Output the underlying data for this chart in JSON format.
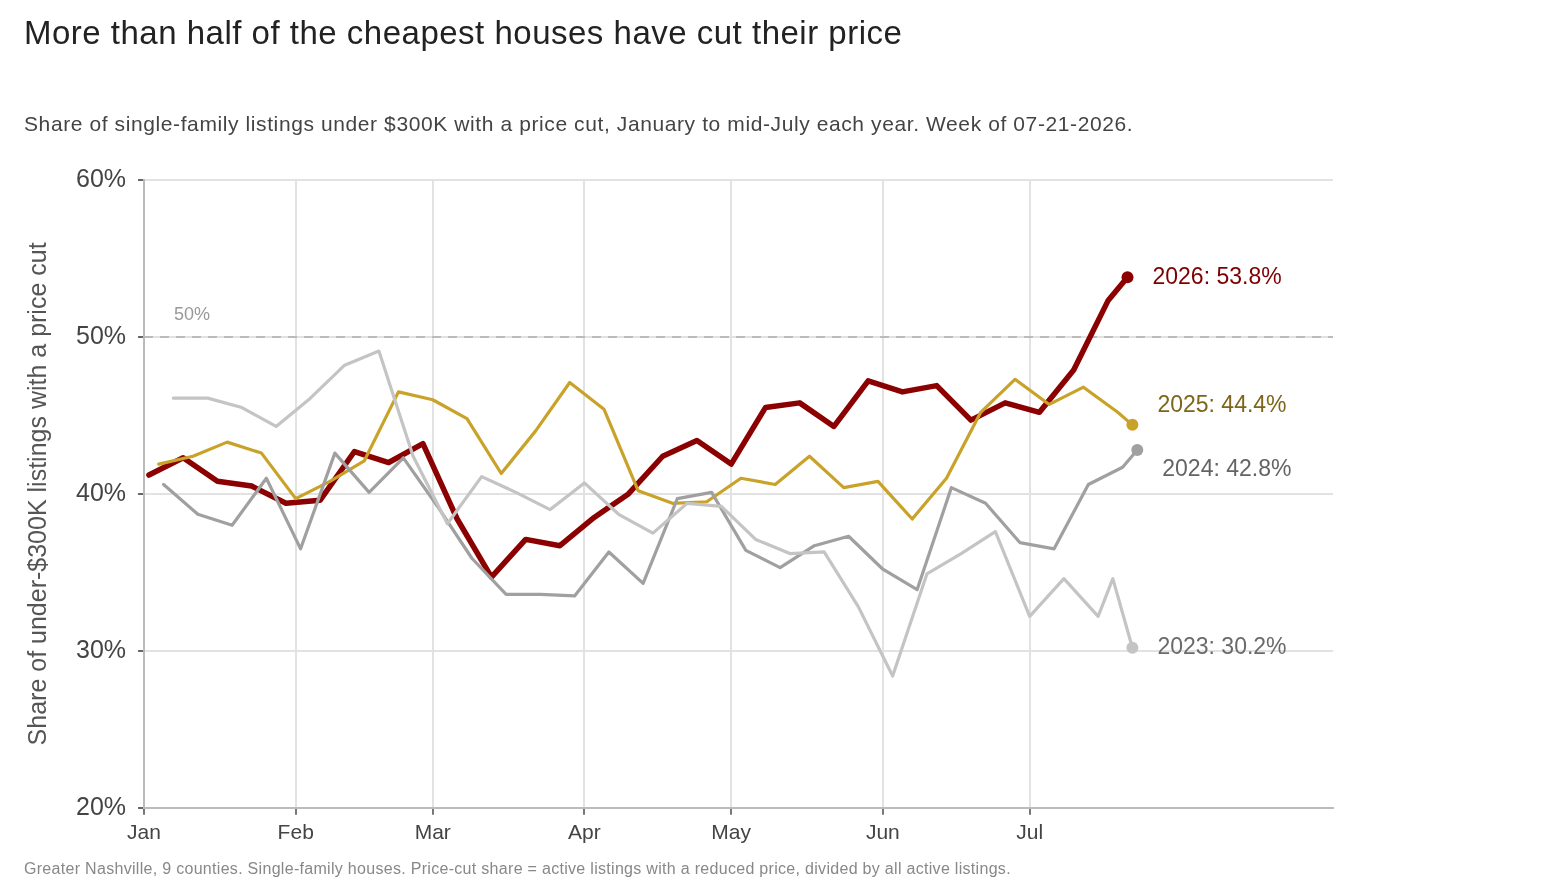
{
  "chart_data": {
    "type": "line",
    "title": "More than half of the cheapest houses have cut their price",
    "subtitle": "Share of single-family listings under $300K with a price cut, January to mid-July each year. Week of 07-21-2026.",
    "ylabel": "Share of under-$300K listings with a price cut",
    "annotations": [
      "Greater Nashville, 9 counties. Single-family houses. Price-cut share = active listings with a reduced price, divided by all active listings."
    ],
    "xlim": [
      "--01-01",
      "--09-01"
    ],
    "xticks": [
      {
        "value": "--01-01",
        "label": "Jan"
      },
      {
        "value": "--02-01",
        "label": "Feb"
      },
      {
        "value": "--03-01",
        "label": "Mar"
      },
      {
        "value": "--04-01",
        "label": "Apr"
      },
      {
        "value": "--05-01",
        "label": "May"
      },
      {
        "value": "--06-01",
        "label": "Jun"
      },
      {
        "value": "--07-01",
        "label": "Jul"
      }
    ],
    "ylim": [
      20,
      60
    ],
    "yticks": [
      {
        "value": 20,
        "label": "20%"
      },
      {
        "value": 30,
        "label": "30%"
      },
      {
        "value": 40,
        "label": "40%"
      },
      {
        "value": 50,
        "label": "50%"
      },
      {
        "value": 60,
        "label": "60%"
      }
    ],
    "grid": true,
    "ref_lines": [
      {
        "axis": "y",
        "value": 50,
        "label": "50%",
        "color": "#bbbbbb",
        "line_style": "dashed"
      }
    ],
    "series": [
      {
        "color": "#c4c4c4",
        "x": [
          "--01-07",
          "--01-14",
          "--01-21",
          "--01-28",
          "--02-04",
          "--02-11",
          "--02-18",
          "--02-25",
          "--03-04",
          "--03-11",
          "--03-18",
          "--03-25",
          "--04-01",
          "--04-08",
          "--04-15",
          "--04-22",
          "--04-29",
          "--05-06",
          "--05-13",
          "--05-20",
          "--05-27",
          "--06-03",
          "--06-10",
          "--06-17",
          "--06-24",
          "--07-01",
          "--07-08",
          "--07-15",
          "--07-18",
          "--07-22"
        ],
        "values": [
          46.1,
          46.1,
          45.5,
          44.3,
          46.1,
          48.2,
          49.1,
          42.4,
          38.1,
          41.1,
          40.1,
          39.0,
          40.7,
          38.7,
          37.5,
          39.4,
          39.2,
          37.1,
          36.2,
          36.3,
          32.8,
          28.4,
          34.9,
          36.2,
          37.6,
          32.2,
          34.6,
          32.2,
          34.6,
          30.2
        ],
        "value_labels": [
          null,
          null,
          null,
          null,
          null,
          null,
          null,
          null,
          null,
          null,
          null,
          null,
          null,
          null,
          null,
          null,
          null,
          null,
          null,
          null,
          null,
          null,
          null,
          null,
          null,
          null,
          null,
          null,
          null,
          "2023: 30.2%"
        ]
      },
      {
        "color": "#a0a0a0",
        "x": [
          "--01-05",
          "--01-12",
          "--01-19",
          "--01-26",
          "--02-02",
          "--02-09",
          "--02-16",
          "--02-23",
          "--03-02",
          "--03-09",
          "--03-16",
          "--03-23",
          "--03-30",
          "--04-06",
          "--04-13",
          "--04-20",
          "--04-27",
          "--05-04",
          "--05-11",
          "--05-18",
          "--05-25",
          "--06-01",
          "--06-08",
          "--06-15",
          "--06-22",
          "--06-29",
          "--07-06",
          "--07-13",
          "--07-20",
          "--07-23"
        ],
        "values": [
          40.6,
          38.7,
          38.0,
          41.0,
          36.5,
          42.6,
          40.1,
          42.3,
          39.2,
          35.9,
          33.6,
          33.6,
          33.5,
          36.3,
          34.3,
          39.7,
          40.1,
          36.4,
          35.3,
          36.7,
          37.3,
          35.2,
          33.9,
          40.4,
          39.4,
          36.9,
          36.5,
          40.6,
          41.7,
          42.8
        ],
        "value_labels": [
          null,
          null,
          null,
          null,
          null,
          null,
          null,
          null,
          null,
          null,
          null,
          null,
          null,
          null,
          null,
          null,
          null,
          null,
          null,
          null,
          null,
          null,
          null,
          null,
          null,
          null,
          null,
          null,
          null,
          "2024: 42.8%"
        ]
      },
      {
        "color": "#c9a22a",
        "x": [
          "--01-04",
          "--01-11",
          "--01-18",
          "--01-25",
          "--02-01",
          "--02-08",
          "--02-15",
          "--02-22",
          "--03-01",
          "--03-08",
          "--03-15",
          "--03-22",
          "--03-29",
          "--04-05",
          "--04-12",
          "--04-19",
          "--04-26",
          "--05-03",
          "--05-10",
          "--05-17",
          "--05-24",
          "--05-31",
          "--06-07",
          "--06-14",
          "--06-21",
          "--06-28",
          "--07-05",
          "--07-12",
          "--07-19",
          "--07-22"
        ],
        "values": [
          41.9,
          42.4,
          43.3,
          42.6,
          39.7,
          40.8,
          42.1,
          46.5,
          46.0,
          44.8,
          41.3,
          44.0,
          47.1,
          45.4,
          40.2,
          39.4,
          39.5,
          41.0,
          40.6,
          42.4,
          40.4,
          40.8,
          38.4,
          41.0,
          45.2,
          47.3,
          45.7,
          46.8,
          45.2,
          44.4
        ],
        "value_labels": [
          null,
          null,
          null,
          null,
          null,
          null,
          null,
          null,
          null,
          null,
          null,
          null,
          null,
          null,
          null,
          null,
          null,
          null,
          null,
          null,
          null,
          null,
          null,
          null,
          null,
          null,
          null,
          null,
          null,
          "2025: 44.4%"
        ]
      },
      {
        "color": "#8b0000",
        "x": [
          "--01-02",
          "--01-09",
          "--01-16",
          "--01-23",
          "--01-30",
          "--02-06",
          "--02-13",
          "--02-20",
          "--02-27",
          "--03-06",
          "--03-13",
          "--03-20",
          "--03-27",
          "--04-03",
          "--04-10",
          "--04-17",
          "--04-24",
          "--05-01",
          "--05-08",
          "--05-15",
          "--05-22",
          "--05-29",
          "--06-05",
          "--06-12",
          "--06-19",
          "--06-26",
          "--07-03",
          "--07-10",
          "--07-17",
          "--07-21"
        ],
        "values": [
          41.2,
          42.3,
          40.8,
          40.5,
          39.4,
          39.6,
          42.7,
          42.0,
          43.2,
          38.4,
          34.7,
          37.1,
          36.7,
          38.5,
          40.0,
          42.4,
          43.4,
          41.9,
          45.5,
          45.8,
          44.3,
          47.2,
          46.5,
          46.9,
          44.7,
          45.8,
          45.2,
          47.9,
          52.3,
          53.8
        ],
        "value_labels": [
          null,
          null,
          null,
          null,
          null,
          null,
          null,
          null,
          null,
          null,
          null,
          null,
          null,
          null,
          null,
          null,
          null,
          null,
          null,
          null,
          null,
          null,
          null,
          null,
          null,
          null,
          null,
          null,
          null,
          "2026: 53.8%"
        ]
      }
    ]
  }
}
